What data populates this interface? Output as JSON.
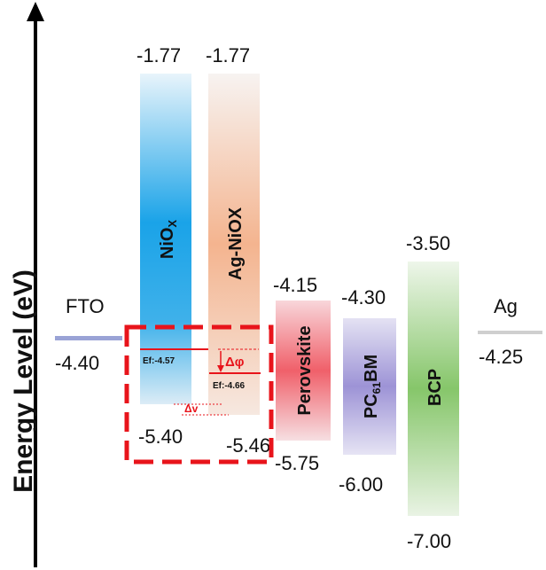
{
  "axis": {
    "label": "Energy Level (eV)"
  },
  "layers": {
    "fto": {
      "name": "FTO",
      "level": "-4.40"
    },
    "nio": {
      "name_main": "NiO",
      "name_sub": "X",
      "top": "-1.77",
      "bottom": "-5.40",
      "fermi": "Ef:-4.57",
      "color": "#1aa3e8"
    },
    "agnio": {
      "name": "Ag-NiOX",
      "top": "-1.77",
      "bottom": "-5.46",
      "fermi": "Ef:-4.66",
      "color": "#f4b48f"
    },
    "perov": {
      "name": "Perovskite",
      "top": "-4.15",
      "bottom": "-5.75",
      "color": "#f0606a"
    },
    "pcbm": {
      "name_pre": "PC",
      "name_sub": "61",
      "name_post": "BM",
      "top": "-4.30",
      "bottom": "-6.00",
      "color": "#9d93d6"
    },
    "bcp": {
      "name": "BCP",
      "top": "-3.50",
      "bottom": "-7.00",
      "color": "#86c66a"
    },
    "ag": {
      "name": "Ag",
      "level": "-4.25"
    }
  },
  "annotations": {
    "delta_phi": "Δφ",
    "delta_v": "Δv"
  },
  "colors": {
    "highlight": "#e8141b"
  }
}
